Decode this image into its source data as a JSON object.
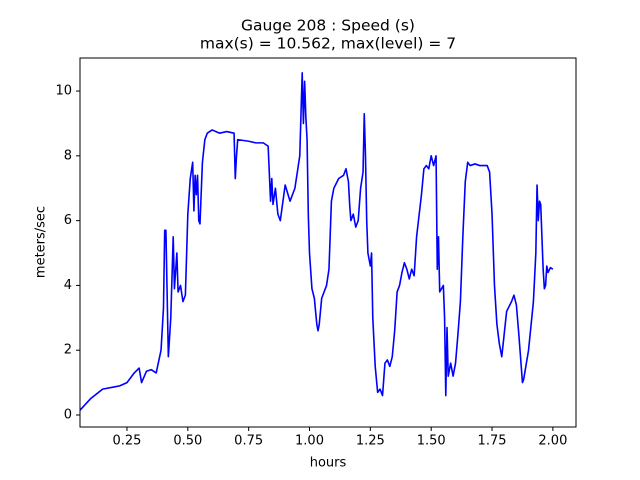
{
  "chart_data": {
    "type": "line",
    "title": [
      "Gauge 208 : Speed (s)",
      "max(s) =  10.562,    max(level) = 7"
    ],
    "x_label": "hours",
    "y_label": "meters/sec",
    "xlim": [
      0.057,
      2.095
    ],
    "ylim": [
      -0.37,
      11.02
    ],
    "xticks": [
      0.25,
      {
        "value": 0.5,
        "label": "0.50"
      },
      0.75,
      {
        "value": 1,
        "label": "1.00"
      },
      1.25,
      {
        "value": 1.5,
        "label": "1.50"
      },
      1.75,
      {
        "value": 2,
        "label": "2.00"
      }
    ],
    "yticks": [
      0,
      2,
      4,
      6,
      8,
      10
    ],
    "grid": false,
    "series": [
      {
        "name": "speed",
        "color": "#0000ff",
        "x": [
          0.057,
          0.1,
          0.15,
          0.2,
          0.22,
          0.25,
          0.28,
          0.3,
          0.31,
          0.33,
          0.35,
          0.37,
          0.39,
          0.4,
          0.405,
          0.41,
          0.42,
          0.43,
          0.44,
          0.445,
          0.455,
          0.46,
          0.47,
          0.48,
          0.49,
          0.5,
          0.51,
          0.52,
          0.525,
          0.53,
          0.535,
          0.54,
          0.545,
          0.55,
          0.56,
          0.57,
          0.58,
          0.6,
          0.63,
          0.66,
          0.69,
          0.695,
          0.7,
          0.705,
          0.75,
          0.78,
          0.81,
          0.83,
          0.84,
          0.845,
          0.85,
          0.86,
          0.87,
          0.88,
          0.9,
          0.92,
          0.94,
          0.96,
          0.97,
          0.975,
          0.98,
          0.985,
          0.99,
          0.995,
          1.0,
          1.01,
          1.02,
          1.03,
          1.035,
          1.04,
          1.05,
          1.07,
          1.08,
          1.09,
          1.1,
          1.12,
          1.14,
          1.15,
          1.16,
          1.165,
          1.17,
          1.18,
          1.19,
          1.2,
          1.21,
          1.22,
          1.225,
          1.23,
          1.235,
          1.24,
          1.25,
          1.255,
          1.26,
          1.27,
          1.28,
          1.29,
          1.3,
          1.31,
          1.32,
          1.33,
          1.34,
          1.35,
          1.36,
          1.37,
          1.38,
          1.39,
          1.4,
          1.41,
          1.42,
          1.43,
          1.44,
          1.46,
          1.47,
          1.48,
          1.49,
          1.5,
          1.51,
          1.52,
          1.525,
          1.53,
          1.535,
          1.55,
          1.555,
          1.56,
          1.565,
          1.57,
          1.58,
          1.59,
          1.6,
          1.61,
          1.62,
          1.63,
          1.64,
          1.65,
          1.66,
          1.68,
          1.7,
          1.73,
          1.74,
          1.75,
          1.76,
          1.77,
          1.78,
          1.79,
          1.8,
          1.81,
          1.83,
          1.84,
          1.85,
          1.86,
          1.87,
          1.875,
          1.88,
          1.9,
          1.92,
          1.93,
          1.935,
          1.94,
          1.945,
          1.95,
          1.96,
          1.965,
          1.97,
          1.975,
          1.98,
          1.99,
          2.0
        ],
        "values": [
          0.15,
          0.5,
          0.8,
          0.87,
          0.9,
          1.0,
          1.3,
          1.45,
          1.0,
          1.35,
          1.4,
          1.3,
          2.0,
          3.3,
          5.7,
          5.7,
          1.8,
          3.0,
          5.5,
          3.9,
          5.0,
          3.8,
          4.0,
          3.5,
          3.7,
          6.2,
          7.3,
          7.8,
          6.3,
          7.4,
          6.8,
          7.4,
          6.0,
          5.9,
          7.8,
          8.5,
          8.7,
          8.8,
          8.7,
          8.75,
          8.7,
          7.3,
          8.0,
          8.5,
          8.45,
          8.4,
          8.4,
          8.3,
          6.6,
          7.3,
          6.5,
          7.0,
          6.2,
          6.0,
          7.1,
          6.6,
          7.0,
          8.0,
          10.562,
          9.0,
          10.3,
          9.2,
          8.5,
          6.2,
          5.0,
          3.9,
          3.6,
          2.8,
          2.6,
          2.8,
          3.6,
          4.0,
          4.5,
          6.6,
          7.0,
          7.3,
          7.4,
          7.6,
          7.2,
          6.5,
          6.0,
          6.2,
          5.8,
          6.0,
          7.0,
          7.5,
          9.3,
          8.0,
          6.0,
          5.0,
          4.6,
          5.0,
          3.0,
          1.5,
          0.7,
          0.8,
          0.6,
          1.6,
          1.7,
          1.5,
          1.8,
          2.6,
          3.8,
          4.0,
          4.4,
          4.7,
          4.5,
          4.2,
          4.5,
          4.3,
          5.5,
          6.8,
          7.6,
          7.7,
          7.6,
          8.0,
          7.7,
          8.0,
          4.5,
          5.5,
          3.8,
          4.0,
          3.0,
          0.6,
          2.7,
          1.2,
          1.6,
          1.2,
          1.6,
          2.5,
          3.5,
          5.5,
          7.2,
          7.8,
          7.7,
          7.75,
          7.7,
          7.7,
          7.5,
          6.2,
          4.0,
          2.8,
          2.2,
          1.8,
          2.5,
          3.2,
          3.5,
          3.7,
          3.4,
          2.5,
          1.5,
          1.0,
          1.1,
          2.0,
          3.5,
          5.0,
          7.1,
          6.0,
          6.6,
          6.5,
          4.5,
          3.9,
          4.0,
          4.6,
          4.4,
          4.55,
          4.5
        ]
      }
    ]
  }
}
